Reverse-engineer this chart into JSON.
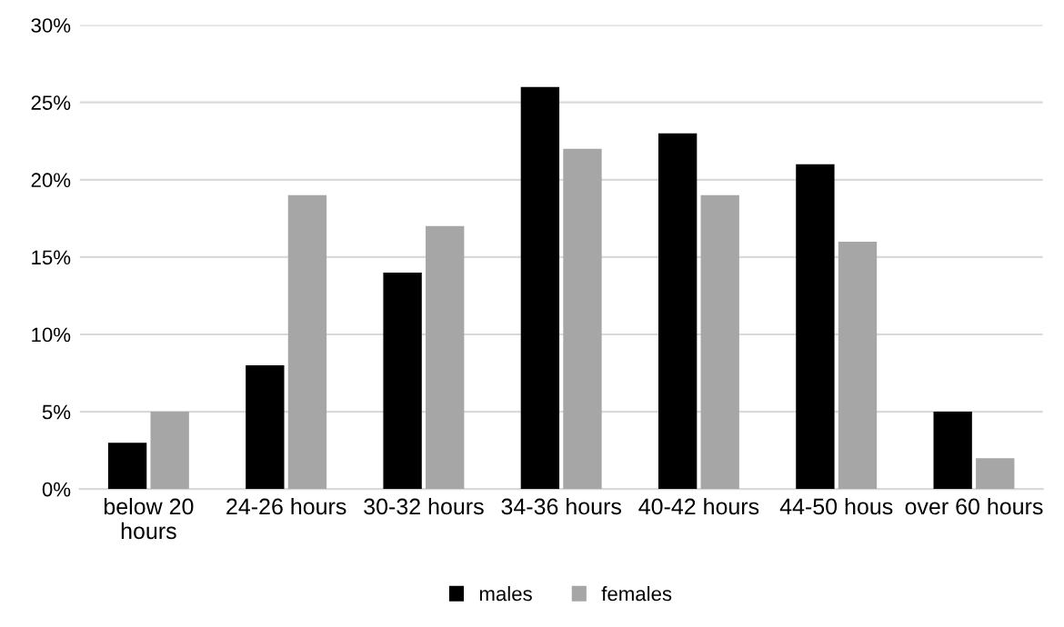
{
  "chart_data": {
    "type": "bar",
    "categories": [
      "below 20 hours",
      "24-26 hours",
      "30-32 hours",
      "34-36 hours",
      "40-42 hours",
      "44-50 hous",
      "over 60 hours"
    ],
    "series": [
      {
        "name": "males",
        "color": "#000000",
        "values": [
          3,
          8,
          14,
          26,
          23,
          21,
          5
        ]
      },
      {
        "name": "females",
        "color": "#a6a6a6",
        "values": [
          5,
          19,
          17,
          22,
          19,
          16,
          2
        ]
      }
    ],
    "ylim": [
      0,
      30
    ],
    "yticks": [
      {
        "value": 0,
        "label": "0%"
      },
      {
        "value": 5,
        "label": "5%"
      },
      {
        "value": 10,
        "label": "10%"
      },
      {
        "value": 15,
        "label": "15%"
      },
      {
        "value": 20,
        "label": "20%"
      },
      {
        "value": 25,
        "label": "25%"
      },
      {
        "value": 30,
        "label": "30%"
      }
    ],
    "grid": "y",
    "legend": "bottom"
  }
}
